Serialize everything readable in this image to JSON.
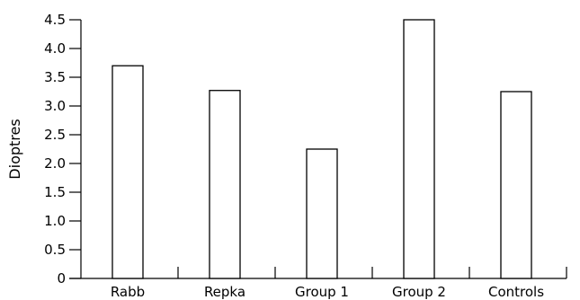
{
  "chart_data": {
    "type": "bar",
    "categories": [
      "Rabb",
      "Repka",
      "Group 1",
      "Group 2",
      "Controls"
    ],
    "values": [
      3.7,
      3.27,
      2.25,
      4.5,
      3.25
    ],
    "ylabel": "Dioptres",
    "xlabel": "",
    "ylim": [
      0,
      4.5
    ],
    "yticks": [
      "0",
      "0.5",
      "1.0",
      "1.5",
      "2.0",
      "2.5",
      "3.0",
      "3.5",
      "4.0",
      "4.5"
    ],
    "grid": false,
    "legend": "none",
    "bar_fill": "#ffffff",
    "bar_stroke": "#000000"
  }
}
